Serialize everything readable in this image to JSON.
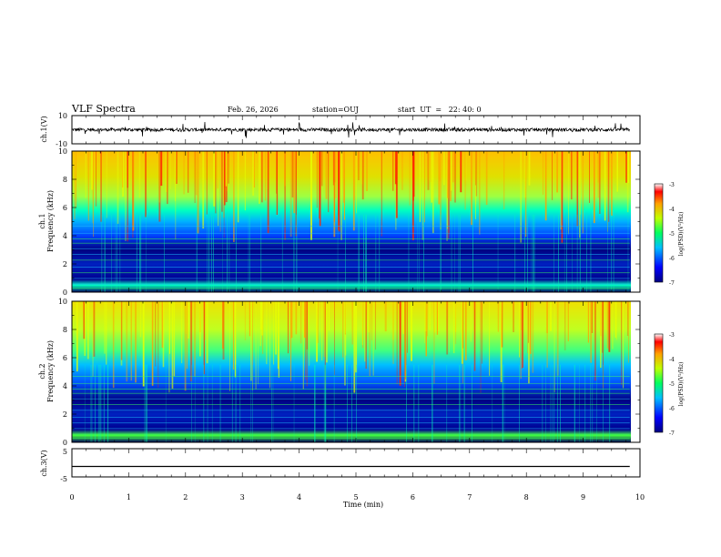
{
  "header": {
    "title": "VLF Spectra",
    "date": "Feb. 26, 2026",
    "station": "station=OUJ",
    "start": "start  UT  =   22: 40: 0"
  },
  "chart_data": [
    {
      "type": "line",
      "name": "ch1-waveform",
      "ylabel": "ch.1(V)",
      "ylim": [
        -10,
        10
      ],
      "yticks": [
        "10",
        "-10"
      ],
      "x_range_min": [
        0,
        9.85
      ]
    },
    {
      "type": "heatmap",
      "name": "ch1-spectrogram",
      "ylabel": "ch.1\nFrequency (kHz)",
      "ylim": [
        0,
        10
      ],
      "yticks": [
        "10",
        "8",
        "6",
        "4",
        "2",
        "0"
      ],
      "colorbar": {
        "label": "log(PSD)(V²/Hz)",
        "range": [
          -7,
          -3
        ],
        "ticks": [
          "-3",
          "-4",
          "-5",
          "-6",
          "-7"
        ]
      }
    },
    {
      "type": "heatmap",
      "name": "ch2-spectrogram",
      "ylabel": "ch.2\nFrequency (kHz)",
      "ylim": [
        0,
        10
      ],
      "yticks": [
        "10",
        "8",
        "6",
        "4",
        "2",
        "0"
      ],
      "colorbar": {
        "label": "log(PSD)(V²/Hz)",
        "range": [
          -7,
          -3
        ],
        "ticks": [
          "-3",
          "-4",
          "-5",
          "-6",
          "-7"
        ]
      }
    },
    {
      "type": "line",
      "name": "ch3-waveform",
      "ylabel": "ch.3(V)",
      "ylim": [
        -5,
        5
      ],
      "yticks": [
        "5",
        "-5"
      ],
      "values_constant": -1.3
    }
  ],
  "xaxis": {
    "label": "Time (min)",
    "range": [
      0,
      10
    ],
    "ticks": [
      "0",
      "1",
      "2",
      "3",
      "4",
      "5",
      "6",
      "7",
      "8",
      "9",
      "10"
    ]
  },
  "labels": {
    "ch1_v": "ch.1(V)",
    "ch1_freq_a": "ch.1",
    "ch1_freq_b": "Frequency (kHz)",
    "ch2_freq_a": "ch.2",
    "ch2_freq_b": "Frequency (kHz)",
    "ch3_v": "ch.3(V)",
    "cb_label": "log(PSD)(V²/Hz)"
  },
  "colors": {
    "frame": "#000000",
    "signal": "#000000"
  }
}
